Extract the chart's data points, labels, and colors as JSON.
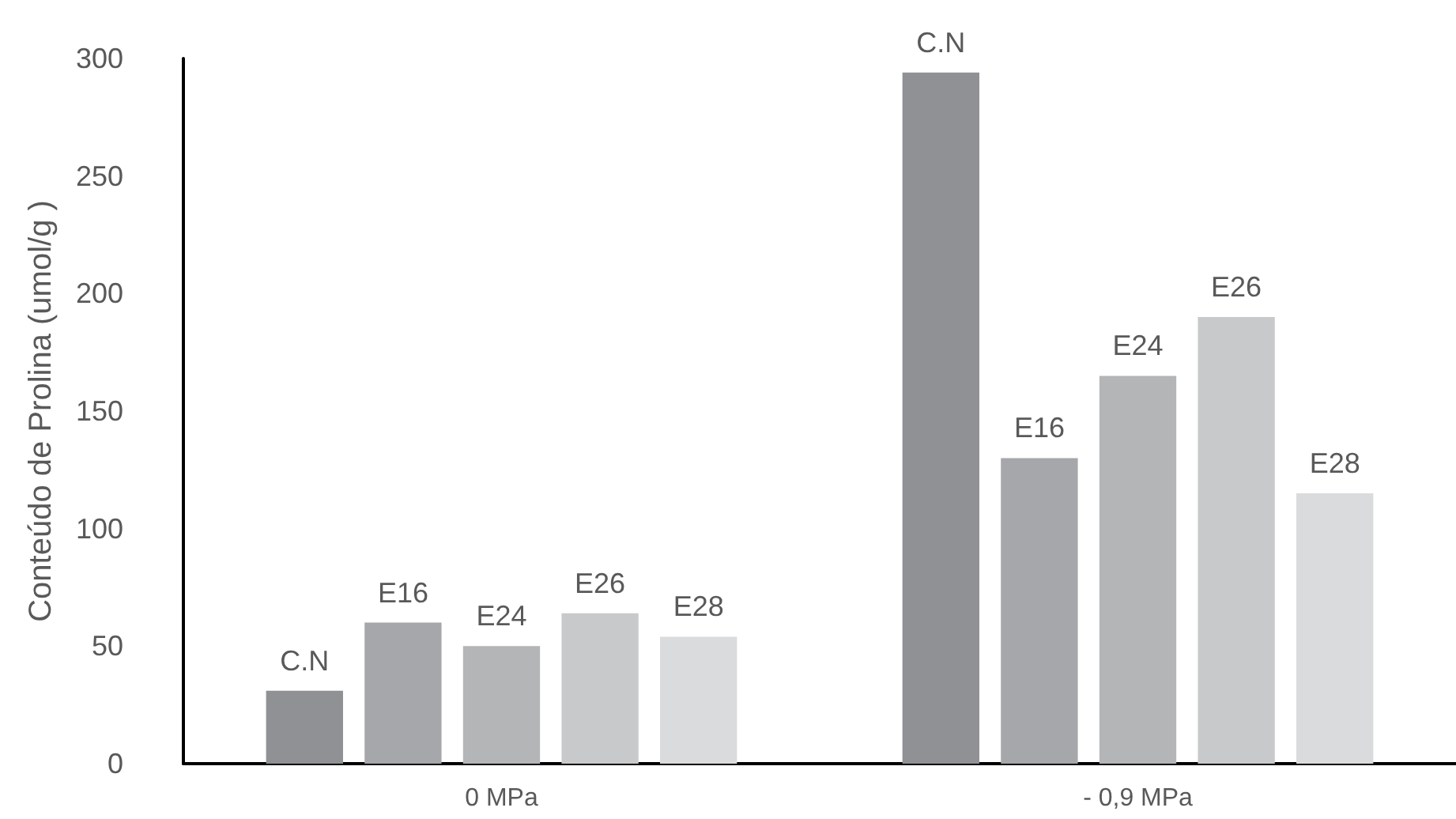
{
  "chart_data": {
    "type": "bar",
    "ylabel": "Conteúdo de Prolina (umol/g )",
    "categories": [
      "0 MPa",
      "- 0,9 MPa"
    ],
    "series": [
      {
        "name": "C.N",
        "color": "#909195",
        "values": [
          31,
          294
        ]
      },
      {
        "name": "E16",
        "color": "#a6a7aa",
        "values": [
          60,
          130
        ]
      },
      {
        "name": "E24",
        "color": "#b4b5b7",
        "values": [
          50,
          165
        ]
      },
      {
        "name": "E26",
        "color": "#c8c9cb",
        "values": [
          64,
          190
        ]
      },
      {
        "name": "E28",
        "color": "#dadbdc",
        "values": [
          54,
          115
        ]
      }
    ],
    "ylim": [
      0,
      300
    ],
    "yticks": [
      0,
      50,
      100,
      150,
      200,
      250,
      300
    ],
    "grid": false,
    "legend": false
  }
}
